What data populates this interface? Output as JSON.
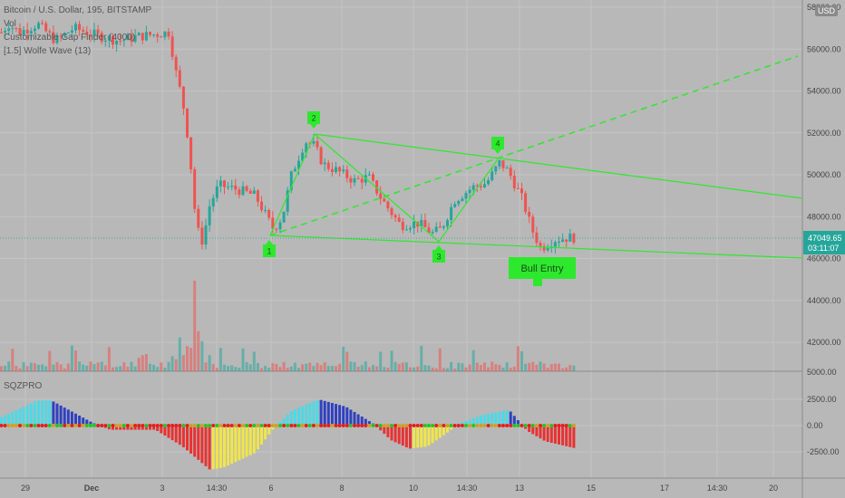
{
  "header": {
    "symbol_line": "Bitcoin / U.S. Dollar, 195, BITSTAMP",
    "indicator_vol": "Vol",
    "indicator_gap": "Customizable Gap Finder (4000)",
    "indicator_wolfe": "[1.5] Wolfe Wave (13)",
    "currency_badge": "USD"
  },
  "price_axis": {
    "labels": [
      "58000.00",
      "56000.00",
      "54000.00",
      "52000.00",
      "50000.00",
      "48000.00",
      "46000.00",
      "44000.00",
      "42000.00"
    ],
    "last_price": "47049.65",
    "countdown": "03:11:07"
  },
  "oscillator": {
    "name": "SQZPRO",
    "labels": [
      "5000.00",
      "2500.00",
      "0.00",
      "-2500.00"
    ]
  },
  "time_axis": {
    "labels": [
      "29",
      "Dec",
      "3",
      "14:30",
      "6",
      "8",
      "10",
      "14:30",
      "13",
      "15",
      "17",
      "14:30",
      "20"
    ]
  },
  "annotations": {
    "points": [
      "1",
      "2",
      "3",
      "4"
    ],
    "bull_entry": "Bull Entry"
  },
  "colors": {
    "up": "#26a69a",
    "down": "#ef5350",
    "wolfe": "#2ee82e",
    "bg": "#b8b8b8",
    "sq_cyan": "#4dd9e6",
    "sq_blue": "#3040c0",
    "sq_red": "#e83232",
    "sq_yellow": "#f0e64a"
  },
  "chart_data": {
    "type": "candlestick",
    "price_range": [
      41000,
      58500
    ],
    "wolfe_points": [
      {
        "label": "1",
        "x": "6",
        "y": 47100
      },
      {
        "label": "2",
        "x": "7",
        "y": 52000
      },
      {
        "label": "3",
        "x": "11",
        "y": 46800
      },
      {
        "label": "4",
        "x": "12",
        "y": 50800
      }
    ],
    "bull_entry": {
      "x": "13",
      "y": 46000
    }
  }
}
